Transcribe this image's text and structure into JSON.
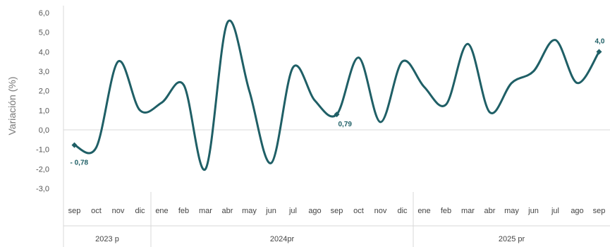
{
  "chart_data": {
    "type": "line",
    "title": "",
    "ylabel": "Variación (%)",
    "xlabel": "",
    "ylim": [
      -3.0,
      6.0
    ],
    "yticks": [
      "6,0",
      "5,0",
      "4,0",
      "3,0",
      "2,0",
      "1,0",
      "0,0",
      "-1,0",
      "-2,0",
      "-3,0"
    ],
    "grid": false,
    "legend": "none",
    "line_color": "#1f5f66",
    "categories": [
      "sep",
      "oct",
      "nov",
      "dic",
      "ene",
      "feb",
      "mar",
      "abr",
      "may",
      "jun",
      "jul",
      "ago",
      "sep",
      "oct",
      "nov",
      "dic",
      "ene",
      "feb",
      "mar",
      "abr",
      "may",
      "jun",
      "jul",
      "ago",
      "sep"
    ],
    "year_groups": [
      {
        "label": "2023 p",
        "count": 4
      },
      {
        "label": "2024pr",
        "count": 12
      },
      {
        "label": "2025 pr",
        "count": 9
      }
    ],
    "series": [
      {
        "values": [
          -0.78,
          -0.9,
          3.5,
          1.0,
          1.4,
          2.3,
          -2.0,
          5.5,
          2.0,
          -1.7,
          3.2,
          1.5,
          0.79,
          3.7,
          0.4,
          3.5,
          2.2,
          1.3,
          4.4,
          0.9,
          2.4,
          3.0,
          4.6,
          2.4,
          4.0
        ]
      }
    ],
    "data_labels": [
      {
        "index": 0,
        "text": "- 0,78"
      },
      {
        "index": 12,
        "text": "0,79"
      },
      {
        "index": 24,
        "text": "4,0"
      }
    ]
  }
}
